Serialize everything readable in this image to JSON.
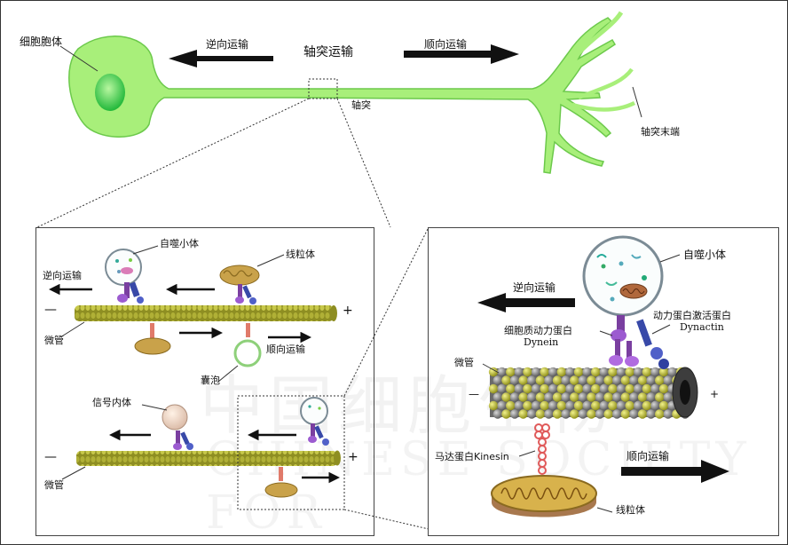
{
  "watermark": {
    "main": "中国细胞生物",
    "sub": "CHINESE SOCIETY FOR"
  },
  "top": {
    "cell_body": "细胞胞体",
    "retrograde": "逆向运输",
    "center_title": "轴突运输",
    "anterograde": "顺向运输",
    "axon": "轴突",
    "axon_terminal": "轴突末端"
  },
  "left_panel": {
    "autophagosome": "自噬小体",
    "mitochondrion": "线粒体",
    "retrograde": "逆向运输",
    "minus1": "—",
    "plus1": "+",
    "microtubule1": "微管",
    "anterograde": "顺向运输",
    "vesicle": "囊泡",
    "signaling_endosome": "信号内体",
    "minus2": "—",
    "plus2": "+",
    "microtubule2": "微管"
  },
  "right_panel": {
    "autophagosome": "自噬小体",
    "retrograde": "逆向运输",
    "dynactin_cn": "动力蛋白激活蛋白",
    "dynactin_en": "Dynactin",
    "dynein_cn": "细胞质动力蛋白",
    "dynein_en": "Dynein",
    "microtubule": "微管",
    "minus": "—",
    "plus": "+",
    "kinesin": "马达蛋白Kinesin",
    "anterograde": "顺向运输",
    "mitochondrion": "线粒体"
  },
  "colors": {
    "neuron": "#a8ef7a",
    "microtubule": "#9a9a2a",
    "bead_grey": "#8a8a8a",
    "bead_yellow": "#c8c83a"
  }
}
